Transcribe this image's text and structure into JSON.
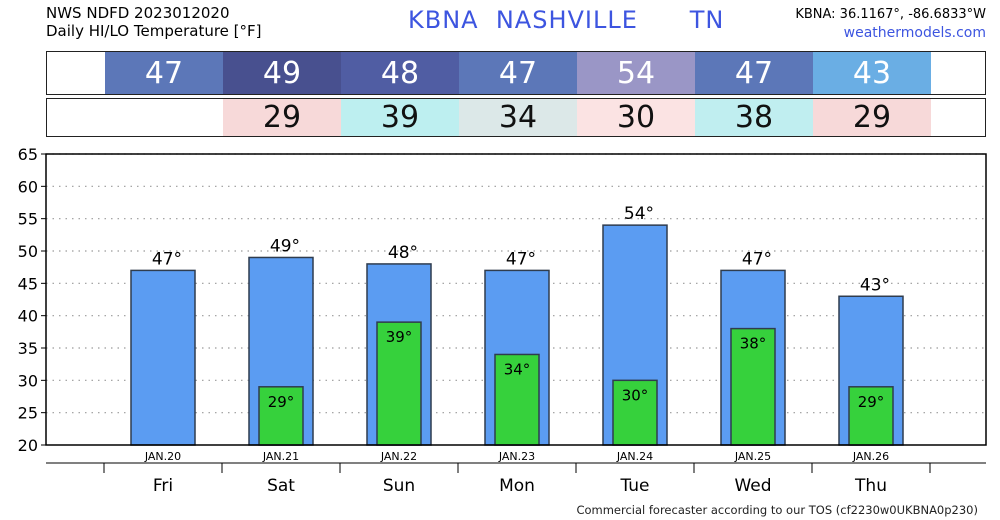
{
  "header": {
    "source": "NWS NDFD 2023012020",
    "subtitle": "Daily HI/LO Temperature [°F]",
    "station": "KBNA",
    "city": "NASHVILLE",
    "state": "TN",
    "coords": "KBNA: 36.1167°, -86.6833°W",
    "site": "weathermodels.com"
  },
  "hi_strip": {
    "values": [
      "47",
      "49",
      "48",
      "47",
      "54",
      "47",
      "43"
    ],
    "colors": [
      "#5c77b8",
      "#48508f",
      "#505da3",
      "#5c77b8",
      "#9a96c6",
      "#5c77b8",
      "#6aaee4"
    ]
  },
  "lo_strip": {
    "values": [
      "",
      "29",
      "39",
      "34",
      "30",
      "38",
      "29"
    ],
    "colors": [
      "#ffffff",
      "#f7d9d9",
      "#bdeff0",
      "#dce8e8",
      "#fbe3e3",
      "#c0eef0",
      "#f7d9d9"
    ]
  },
  "chart_data": {
    "type": "bar",
    "categories": [
      "Fri",
      "Sat",
      "Sun",
      "Mon",
      "Tue",
      "Wed",
      "Thu"
    ],
    "dates": [
      "JAN.20",
      "JAN.21",
      "JAN.22",
      "JAN.23",
      "JAN.24",
      "JAN.25",
      "JAN.26"
    ],
    "series": [
      {
        "name": "",
        "values": [
          47,
          49,
          48,
          47,
          54,
          47,
          43
        ],
        "color": "#5b9cf2"
      },
      {
        "name": "",
        "values": [
          null,
          29,
          39,
          34,
          30,
          38,
          29
        ],
        "color": "#36d13c"
      }
    ],
    "hi_labels": [
      "47°",
      "49°",
      "48°",
      "47°",
      "54°",
      "47°",
      "43°"
    ],
    "lo_labels": [
      "",
      "29°",
      "39°",
      "34°",
      "30°",
      "38°",
      "29°"
    ],
    "y_ticks": [
      "20",
      "25",
      "30",
      "35",
      "40",
      "45",
      "50",
      "55",
      "60",
      "65"
    ],
    "ylim": [
      20,
      65
    ],
    "grid": true,
    "xlabel": "",
    "ylabel": ""
  },
  "footer": "Commercial forecaster according to our TOS (cf2230w0UKBNA0p230)"
}
